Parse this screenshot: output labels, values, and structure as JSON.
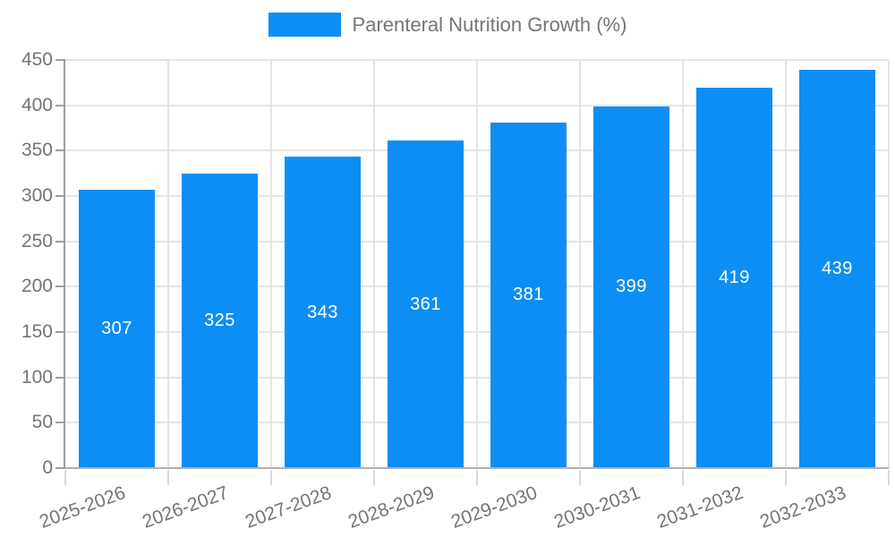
{
  "legend": {
    "label": "Parenteral Nutrition Growth (%)"
  },
  "chart_data": {
    "type": "bar",
    "title": "Parenteral Nutrition Growth (%)",
    "series_name": "Parenteral Nutrition Growth (%)",
    "categories": [
      "2025-2026",
      "2026-2027",
      "2027-2028",
      "2028-2029",
      "2029-2030",
      "2030-2031",
      "2031-2032",
      "2032-2033"
    ],
    "values": [
      307,
      325,
      343,
      361,
      381,
      399,
      419,
      439
    ],
    "value_labels_shown": true,
    "xlabel": "",
    "ylabel": "",
    "ylim": [
      0,
      450
    ],
    "ytick_step": 50,
    "ytick_labels": [
      "0",
      "50",
      "100",
      "150",
      "200",
      "250",
      "300",
      "350",
      "400",
      "450"
    ],
    "grid": true,
    "legend_position": "top-center",
    "x_label_rotation_deg": -20,
    "colors": {
      "bar": "#0d8ef4",
      "value_label": "#ffffff",
      "axis_text": "#757575",
      "gridline": "#e4e4e4",
      "axis_line": "#9e9e9e",
      "baseline": "#b0b0b0",
      "x_tick": "#d9d9d9"
    }
  }
}
